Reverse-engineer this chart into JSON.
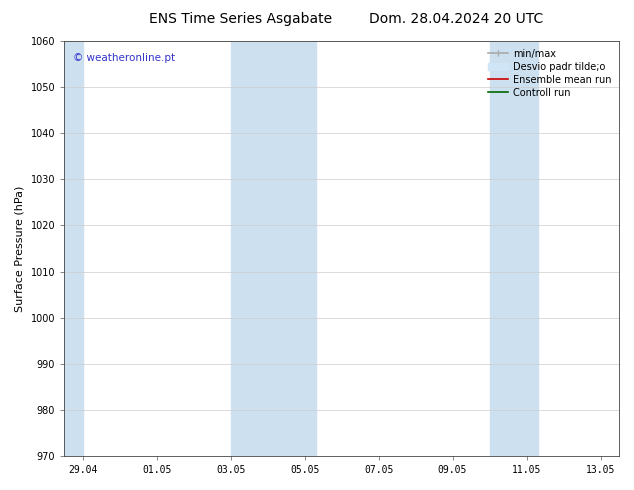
{
  "title_left": "ENS Time Series Asgabate",
  "title_right": "Dom. 28.04.2024 20 UTC",
  "ylabel": "Surface Pressure (hPa)",
  "ylim": [
    970,
    1060
  ],
  "yticks": [
    970,
    980,
    990,
    1000,
    1010,
    1020,
    1030,
    1040,
    1050,
    1060
  ],
  "xtick_labels": [
    "29.04",
    "01.05",
    "03.05",
    "05.05",
    "07.05",
    "09.05",
    "11.05",
    "13.05"
  ],
  "xtick_positions": [
    0,
    2,
    4,
    6,
    8,
    10,
    12,
    14
  ],
  "xlim": [
    -0.5,
    14.5
  ],
  "shaded_bands": [
    {
      "x_start": 4.0,
      "x_end": 6.3
    },
    {
      "x_start": 11.0,
      "x_end": 12.3
    }
  ],
  "left_band": {
    "x_start": -0.5,
    "x_end": 0.0
  },
  "shade_color": "#cce0f0",
  "watermark": "© weatheronline.pt",
  "watermark_color": "#3333cc",
  "legend_entries": [
    {
      "label": "min/max",
      "color": "#aaaaaa",
      "lw": 1.2
    },
    {
      "label": "Desvio padr tilde;o",
      "color": "#d0e5f5",
      "lw": 8
    },
    {
      "label": "Ensemble mean run",
      "color": "#cc0000",
      "lw": 1.2
    },
    {
      "label": "Controll run",
      "color": "#006600",
      "lw": 1.2
    }
  ],
  "background_color": "#ffffff",
  "grid_color": "#cccccc",
  "title_fontsize": 10,
  "tick_fontsize": 7,
  "ylabel_fontsize": 8,
  "legend_fontsize": 7
}
